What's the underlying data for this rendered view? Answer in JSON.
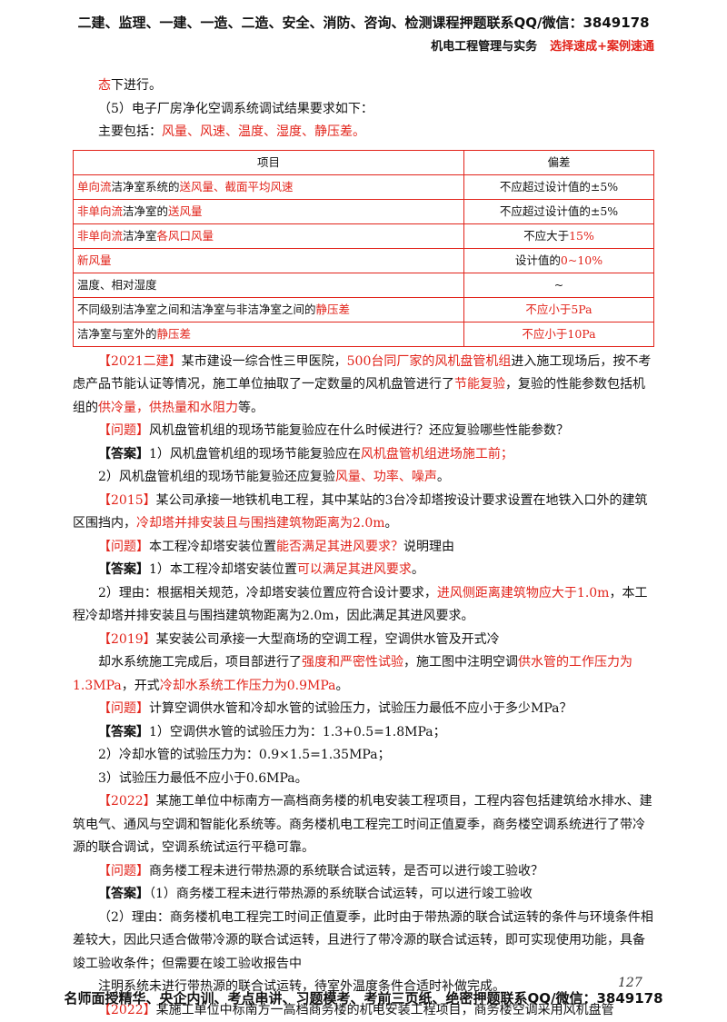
{
  "header": {
    "line1": "二建、监理、一建、一造、二造、安全、消防、咨询、检测课程押题联系QQ/微信：3849178",
    "line2": [
      "机电工程管理与实务",
      {
        "text": "选择速成+案例速通",
        "red": true
      }
    ]
  },
  "intro": [
    {
      "runs": [
        {
          "text": "态",
          "red": true
        },
        "下进行。"
      ]
    },
    {
      "runs": [
        "（5）电子厂房净化空调系统调试结果要求如下："
      ]
    },
    {
      "runs": [
        "主要包括：",
        {
          "text": "风量、风速、温度、湿度、静压差。",
          "red": true
        }
      ]
    }
  ],
  "table": {
    "header": [
      "项目",
      "偏差"
    ],
    "rows": [
      [
        [
          {
            "text": "单向流",
            "red": true
          },
          "洁净室系统的",
          {
            "text": "送风量、截面平均风速",
            "red": true
          }
        ],
        [
          "不应超过设计值的±5%"
        ]
      ],
      [
        [
          {
            "text": "非单向流",
            "red": true
          },
          "洁净室的",
          {
            "text": "送风量",
            "red": true
          }
        ],
        [
          "不应超过设计值的±5%"
        ]
      ],
      [
        [
          {
            "text": "非单向流",
            "red": true
          },
          "洁净室",
          {
            "text": "各风口风量",
            "red": true
          }
        ],
        [
          "不应大于",
          {
            "text": "15%",
            "red": true
          }
        ]
      ],
      [
        [
          {
            "text": "新风量",
            "red": true
          }
        ],
        [
          "设计值的",
          {
            "text": "0~10%",
            "red": true
          }
        ]
      ],
      [
        [
          "温度、相对湿度"
        ],
        [
          "~"
        ]
      ],
      [
        [
          "不同级别洁净室之间和洁净室与非洁净室之间的",
          {
            "text": "静压差",
            "red": true
          }
        ],
        [
          {
            "text": "不应小于5Pa",
            "red": true
          }
        ]
      ],
      [
        [
          "洁净室与室外的",
          {
            "text": "静压差",
            "red": true
          }
        ],
        [
          {
            "text": "不应小于10Pa",
            "red": true
          }
        ]
      ]
    ]
  },
  "paragraphs": [
    {
      "runs": [
        {
          "text": "【2021二建】",
          "red": true
        },
        "某市建设一综合性三甲医院，",
        {
          "text": "500台同厂家的风机盘管机组",
          "red": true
        },
        "进入施工现场后，按不考虑产品节能认证等情况，施工单位抽取了一定数量的风机盘管进行了",
        {
          "text": "节能复验",
          "red": true
        },
        "，复验的性能参数包括机组的",
        {
          "text": "供冷量，供热量和水阻力",
          "red": true
        },
        "等。"
      ]
    },
    {
      "runs": [
        {
          "text": "【问题】",
          "red": true
        },
        "风机盘管机组的现场节能复验应在什么时候进行？还应复验哪些性能参数？"
      ]
    },
    {
      "runs": [
        {
          "text": "【答案】",
          "bold": true
        },
        "1）风机盘管机组的现场节能复验应在",
        {
          "text": "风机盘管机组进场施工前；",
          "red": true
        }
      ]
    },
    {
      "runs": [
        "2）风机盘管机组的现场节能复验还应复验",
        {
          "text": "风量、功率、噪声",
          "red": true
        },
        "。"
      ]
    },
    {
      "runs": [
        {
          "text": "【2015】",
          "red": true
        },
        "某公司承接一地铁机电工程，其中某站的3台冷却塔按设计要求设置在地铁入口外的建筑区围挡内，",
        {
          "text": "冷却塔并排安装且与围挡建筑物距离为2.0m",
          "red": true
        },
        "。"
      ]
    },
    {
      "runs": [
        {
          "text": "【问题】",
          "red": true
        },
        "本工程冷却塔安装位置",
        {
          "text": "能否满足其进风要求？",
          "red": true
        },
        "说明理由"
      ]
    },
    {
      "runs": [
        {
          "text": "【答案】",
          "bold": true
        },
        "1）本工程冷却塔安装位置",
        {
          "text": "可以满足其进风要求",
          "red": true
        },
        "。"
      ]
    },
    {
      "runs": [
        "2）理由：根据相关规范，冷却塔安装位置应符合设计要求，",
        {
          "text": "进风侧距离建筑物应大于1.0m",
          "red": true
        },
        "，本工程冷却塔并排安装且与围挡建筑物距离为2.0m，因此满足其进风要求。"
      ]
    },
    {
      "runs": [
        {
          "text": "【2019】",
          "red": true
        },
        "某安装公司承接一大型商场的空调工程，空调供水管及开式冷"
      ]
    },
    {
      "runs": [
        "却水系统施工完成后，项目部进行了",
        {
          "text": "强度和严密性试验",
          "red": true
        },
        "，施工图中注明空调",
        {
          "text": "供水管的工作压力为1.3MPa",
          "red": true
        },
        "，开式",
        {
          "text": "冷却水系统工作压力为0.9MPa",
          "red": true
        },
        "。"
      ]
    },
    {
      "runs": [
        {
          "text": "【问题】",
          "red": true
        },
        "计算空调供水管和冷却水管的试验压力，试验压力最低不应小于多少MPa？"
      ]
    },
    {
      "runs": [
        {
          "text": "【答案】",
          "bold": true
        },
        "1）空调供水管的试验压力为：1.3+0.5=1.8MPa；"
      ]
    },
    {
      "runs": [
        "2）冷却水管的试验压力为：0.9×1.5=1.35MPa；"
      ]
    },
    {
      "runs": [
        "3）试验压力最低不应小于0.6MPa。"
      ]
    },
    {
      "runs": [
        {
          "text": "【2022】",
          "red": true
        },
        "某施工单位中标南方一高档商务楼的机电安装工程项目，工程内容包括建筑给水排水、建筑电气、通风与空调和智能化系统等。商务楼机电工程完工时间正值夏季，商务楼空调系统进行了带冷源的联合调试，空调系统试运行平稳可靠。"
      ]
    },
    {
      "runs": [
        {
          "text": "【问题】",
          "red": true
        },
        "商务楼工程未进行带热源的系统联合试运转，是否可以进行竣工验收？"
      ]
    },
    {
      "runs": [
        {
          "text": "【答案】",
          "bold": true
        },
        "（1）商务楼工程未进行带热源的系统联合试运转，可以进行竣工验收"
      ]
    },
    {
      "runs": [
        "（2）理由：商务楼机电工程完工时间正值夏季，此时由于带热源的联合试运转的条件与环境条件相差较大，因此只适合做带冷源的联合试运转，且进行了带冷源的联合试运转，即可实现使用功能，具备竣工验收条件；但需要在竣工验收报告中"
      ]
    },
    {
      "runs": [
        "注明系统未进行带热源的联合试运转，待室外温度条件合适时补做完成。"
      ]
    },
    {
      "runs": [
        {
          "text": "【2022】",
          "red": true
        },
        "某施工单位中标南方一高档商务楼的机电安装工程项目，商务楼空调采用风机盘管"
      ]
    }
  ],
  "footer": {
    "text": "名师面授精华、央企内训、考点串讲、习题模考、考前三页纸、绝密押题联系QQ/微信：3849178",
    "page_number": "127"
  }
}
